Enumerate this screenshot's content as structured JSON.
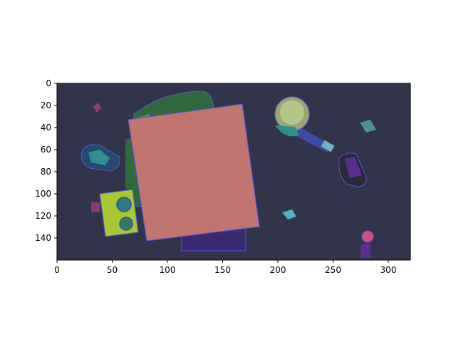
{
  "figure": {
    "xlim": [
      0,
      320
    ],
    "ylim": [
      160,
      0
    ],
    "xticks": [
      0,
      50,
      100,
      150,
      200,
      250,
      300
    ],
    "yticks": [
      0,
      20,
      40,
      60,
      80,
      100,
      120,
      140
    ],
    "x_tick_labels": [
      "0",
      "50",
      "100",
      "150",
      "200",
      "250",
      "300"
    ],
    "y_tick_labels": [
      "0",
      "20",
      "40",
      "60",
      "80",
      "100",
      "120",
      "140"
    ],
    "axis_color": "#000000"
  },
  "image": {
    "background_color": "#31344a",
    "description_free": true
  },
  "colors": {
    "salmon_box": "#c0756f",
    "green_object": "#2f6b3c",
    "teal_object": "#2f8f90",
    "olive_disc": "#9aa86c",
    "blue_handle": "#3e4aa8",
    "yellow_green_block": "#a8c832",
    "purple_object": "#5a2d8f",
    "pink_object": "#d64f78",
    "cyan_object": "#4fb1c4",
    "magenta_object": "#8a3a7a",
    "outline": "#5a55d6"
  }
}
